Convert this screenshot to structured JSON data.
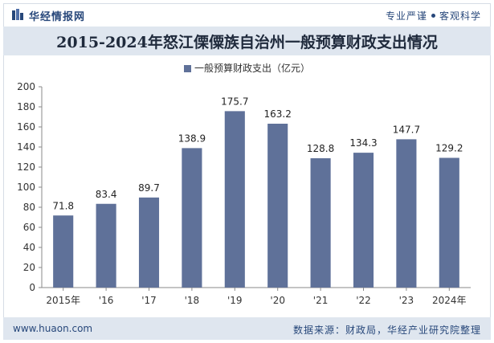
{
  "header": {
    "brand": "华经情报网",
    "slogan_left": "专业严谨",
    "slogan_right": "客观科学"
  },
  "title": "2015-2024年怒江傈僳族自治州一般预算财政支出情况",
  "footer": {
    "site": "www.huaon.com",
    "source": "数据来源：财政局，华经产业研究院整理"
  },
  "colors": {
    "bar": "#5f7199",
    "accent": "#27477a",
    "band": "#dfe6ef"
  },
  "chart_data": {
    "type": "bar",
    "categories": [
      "2015年",
      "'16",
      "'17",
      "'18",
      "'19",
      "'20",
      "'21",
      "'22",
      "'23",
      "2024年"
    ],
    "series": [
      {
        "name": "一般预算财政支出（亿元）",
        "values": [
          71.8,
          83.4,
          89.7,
          138.9,
          175.7,
          163.2,
          128.8,
          134.3,
          147.7,
          129.2
        ]
      }
    ],
    "ylim": [
      0,
      200
    ],
    "yticks": [
      0,
      20,
      40,
      60,
      80,
      100,
      120,
      140,
      160,
      180,
      200
    ],
    "grid": false,
    "legend": "top-center"
  }
}
